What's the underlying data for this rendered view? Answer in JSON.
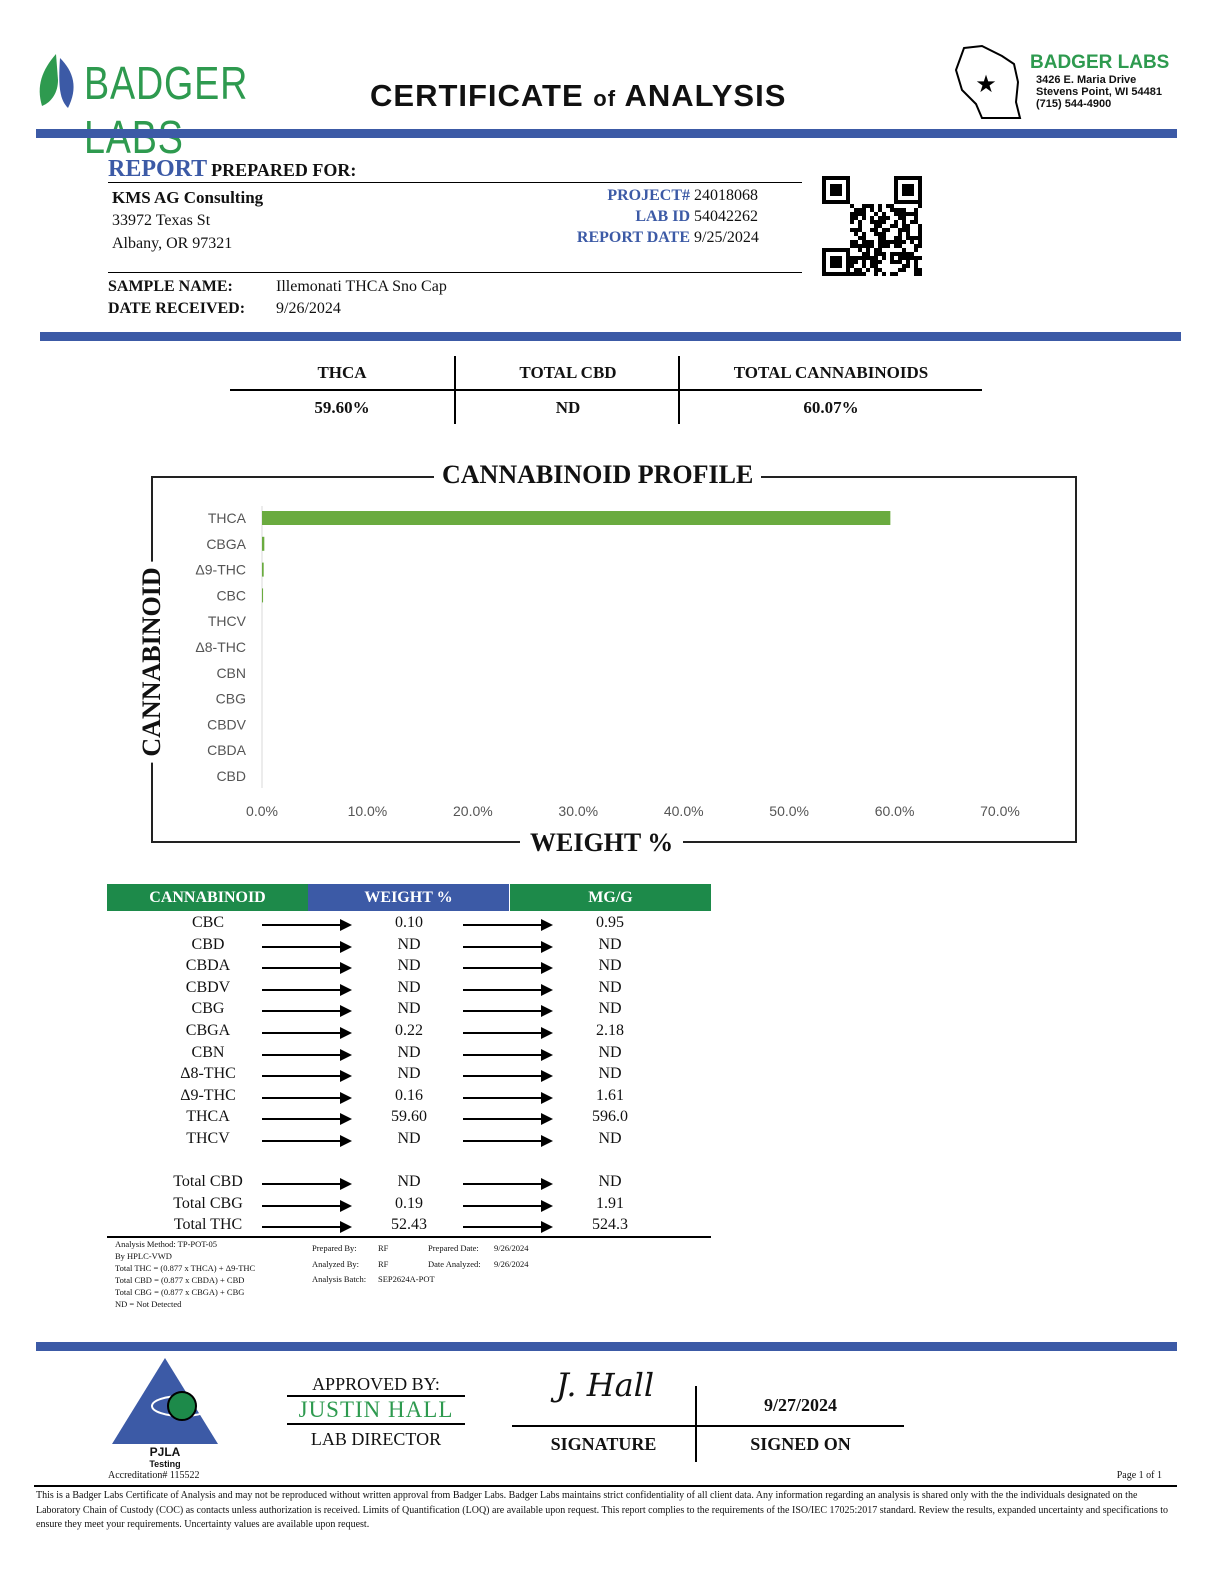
{
  "header": {
    "logo_text": "BADGER LABS",
    "title_main1": "CERTIFICATE",
    "title_of": "of",
    "title_main2": "ANALYSIS",
    "lab_name": "BADGER LABS",
    "address1": "3426 E. Maria Drive",
    "address2": "Stevens Point, WI 54481",
    "phone": "(715) 544-4900"
  },
  "client": {
    "report_label": "REPORT",
    "prepared_for": "PREPARED FOR:",
    "name": "KMS AG Consulting",
    "street": "33972 Texas St",
    "city": "Albany, OR 97321"
  },
  "meta": {
    "project_label": "PROJECT#",
    "project": "24018068",
    "labid_label": "LAB ID",
    "labid": "54042262",
    "date_label": "REPORT DATE",
    "date": "9/25/2024"
  },
  "sample": {
    "name_label": "SAMPLE NAME:",
    "name": "Illemonati THCA Sno Cap",
    "received_label": "DATE RECEIVED:",
    "received": "9/26/2024"
  },
  "summary": [
    {
      "label": "THCA",
      "value": "59.60%"
    },
    {
      "label": "TOTAL CBD",
      "value": "ND"
    },
    {
      "label": "TOTAL CANNABINOIDS",
      "value": "60.07%"
    }
  ],
  "chart_data": {
    "type": "bar",
    "orientation": "horizontal",
    "title": "CANNABINOID PROFILE",
    "xlabel": "WEIGHT %",
    "ylabel": "CANNABINOID",
    "categories": [
      "THCA",
      "CBGA",
      "Δ9-THC",
      "CBC",
      "THCV",
      "Δ8-THC",
      "CBN",
      "CBG",
      "CBDV",
      "CBDA",
      "CBD"
    ],
    "values": [
      59.6,
      0.22,
      0.16,
      0.1,
      0,
      0,
      0,
      0,
      0,
      0,
      0
    ],
    "xlim": [
      0,
      70
    ],
    "xticks": [
      "0.0%",
      "10.0%",
      "20.0%",
      "30.0%",
      "40.0%",
      "50.0%",
      "60.0%",
      "70.0%"
    ],
    "color": "#6aab3f",
    "grid": false
  },
  "table": {
    "headers": [
      "CANNABINOID",
      "WEIGHT %",
      "MG/G"
    ],
    "rows": [
      [
        "CBC",
        "0.10",
        "0.95"
      ],
      [
        "CBD",
        "ND",
        "ND"
      ],
      [
        "CBDA",
        "ND",
        "ND"
      ],
      [
        "CBDV",
        "ND",
        "ND"
      ],
      [
        "CBG",
        "ND",
        "ND"
      ],
      [
        "CBGA",
        "0.22",
        "2.18"
      ],
      [
        "CBN",
        "ND",
        "ND"
      ],
      [
        "Δ8-THC",
        "ND",
        "ND"
      ],
      [
        "Δ9-THC",
        "0.16",
        "1.61"
      ],
      [
        "THCA",
        "59.60",
        "596.0"
      ],
      [
        "THCV",
        "ND",
        "ND"
      ]
    ],
    "totals": [
      [
        "Total CBD",
        "ND",
        "ND"
      ],
      [
        "Total CBG",
        "0.19",
        "1.91"
      ],
      [
        "Total THC",
        "52.43",
        "524.3"
      ]
    ]
  },
  "notes": {
    "left": [
      "Analysis Method: TP-POT-05",
      "By HPLC-VWD",
      "Total THC = (0.877 x  THCA) + Δ9-THC",
      "Total CBD = (0.877 x  CBDA) + CBD",
      "Total CBG = (0.877 x  CBGA) + CBG",
      "ND = Not Detected"
    ],
    "prepared_by_label": "Prepared By:",
    "prepared_by": "RF",
    "analyzed_by_label": "Analyzed By:",
    "analyzed_by": "RF",
    "batch_label": "Analysis Batch:",
    "batch": "SEP2624A-POT",
    "prepared_date_label": "Prepared Date:",
    "prepared_date": "9/26/2024",
    "date_analyzed_label": "Date Analyzed:",
    "date_analyzed": "9/26/2024"
  },
  "approval": {
    "approved_by": "APPROVED BY:",
    "name": "JUSTIN HALL",
    "role": "LAB DIRECTOR",
    "signature_label": "SIGNATURE",
    "signed_on_label": "SIGNED ON",
    "signed_on": "9/27/2024",
    "signature_text": "J. Hall"
  },
  "accreditation": {
    "logo_text": "PJLA",
    "logo_sub": "Testing",
    "number": "Accreditation# 115522"
  },
  "page": "Page 1 of 1",
  "disclaimer": "This is a Badger Labs Certificate of Analysis and may not be reproduced without written approval from Badger Labs. Badger Labs maintains strict confidentiality of all client data. Any information regarding an analysis is shared only with the the individuals designated on the Laboratory Chain of Custody (COC) as contacts unless authorization is received. Limits of Quantification (LOQ) are available upon request. This report complies to the requirements of the ISO/IEC 17025:2017 standard. Review the results, expanded uncertainty and specifications to ensure they meet your requirements. Uncertainty values are available upon request."
}
